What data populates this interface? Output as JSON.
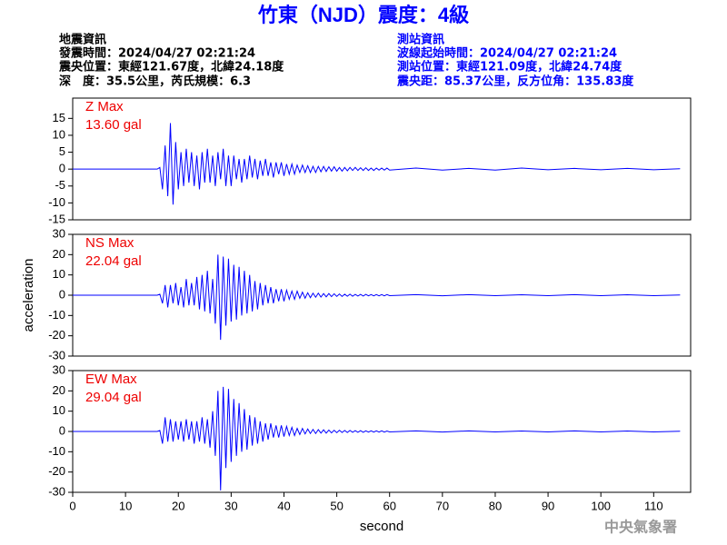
{
  "header": {
    "title": "竹東（NJD）震度：4級",
    "left": [
      "地震資訊",
      "發震時間：2024/04/27 02:21:24",
      "震央位置：東經121.67度，北緯24.18度",
      "深　度：35.5公里，芮氏規模：6.3"
    ],
    "right": [
      "測站資訊",
      "波線起始時間：2024/04/27 02:21:24",
      "測站位置：東經121.09度，北緯24.74度",
      "震央距：85.37公里，反方位角：135.83度"
    ]
  },
  "footer": "中央氣象署",
  "chart_data": [
    {
      "type": "line",
      "annotation": [
        "Z Max",
        "13.60 gal"
      ],
      "color": "#0000ff",
      "xlim": [
        0,
        117
      ],
      "ylim": [
        -15,
        21
      ],
      "yticks": [
        15,
        10,
        5,
        0,
        -5,
        -10,
        -15
      ],
      "x": [
        0,
        16,
        16.5,
        17,
        17.5,
        18,
        18.5,
        19,
        19.5,
        20,
        20.5,
        21,
        21.5,
        22,
        22.5,
        23,
        23.5,
        24,
        24.5,
        25,
        25.5,
        26,
        26.5,
        27,
        27.5,
        28,
        28.5,
        29,
        29.5,
        30,
        30.5,
        31,
        31.5,
        32,
        32.5,
        33,
        33.5,
        34,
        34.5,
        35,
        35.5,
        36,
        36.5,
        37,
        37.5,
        38,
        38.5,
        39,
        39.5,
        40,
        40.5,
        41,
        41.5,
        42,
        42.5,
        43,
        43.5,
        44,
        44.5,
        45,
        45.5,
        46,
        46.5,
        47,
        47.5,
        48,
        48.5,
        49,
        49.5,
        50,
        50.5,
        51,
        51.5,
        52,
        52.5,
        53,
        53.5,
        54,
        54.5,
        55,
        55.5,
        56,
        56.5,
        57,
        57.5,
        58,
        58.5,
        59,
        59.5,
        60,
        65,
        70,
        75,
        80,
        85,
        90,
        95,
        100,
        105,
        110,
        115
      ],
      "values": [
        0,
        0,
        0.5,
        -6,
        7,
        -8,
        13.6,
        -10.5,
        8,
        -6,
        5,
        -5,
        6,
        -4,
        5,
        -5,
        4,
        -6,
        5,
        -4,
        6,
        -4,
        4,
        -5,
        5,
        -3,
        6,
        -5,
        4,
        -5,
        4,
        -3,
        3,
        -4,
        3,
        -3,
        4,
        -2.5,
        3,
        -3,
        2.5,
        -2,
        3,
        -2,
        2,
        -2.5,
        2,
        -1.5,
        2,
        -2,
        1.5,
        -1.5,
        1.5,
        -1.5,
        1.2,
        -1,
        1.2,
        -1,
        1,
        -1,
        0.8,
        -1,
        0.8,
        -0.8,
        0.8,
        -0.7,
        0.7,
        -0.6,
        0.7,
        -0.6,
        0.5,
        -0.6,
        0.5,
        -0.5,
        0.5,
        -0.4,
        0.5,
        -0.4,
        0.4,
        -0.4,
        0.4,
        -0.4,
        0.3,
        -0.4,
        0.3,
        -0.3,
        0.3,
        -0.3,
        0.3,
        -0.3,
        0.3,
        -0.3,
        0.2,
        -0.3,
        0.3,
        -0.2,
        0.2,
        -0.2,
        0.2,
        -0.2,
        0.1
      ]
    },
    {
      "type": "line",
      "annotation": [
        "NS Max",
        "22.04 gal"
      ],
      "ylabel": "acceleration",
      "color": "#0000ff",
      "xlim": [
        0,
        117
      ],
      "ylim": [
        -30,
        30
      ],
      "yticks": [
        30,
        20,
        10,
        0,
        -10,
        -20,
        -30
      ],
      "x": [
        0,
        16,
        16.5,
        17,
        17.5,
        18,
        18.5,
        19,
        19.5,
        20,
        20.5,
        21,
        21.5,
        22,
        22.5,
        23,
        23.5,
        24,
        24.5,
        25,
        25.5,
        26,
        26.5,
        27,
        27.5,
        28,
        28.5,
        29,
        29.5,
        30,
        30.5,
        31,
        31.5,
        32,
        32.5,
        33,
        33.5,
        34,
        34.5,
        35,
        35.5,
        36,
        36.5,
        37,
        37.5,
        38,
        38.5,
        39,
        39.5,
        40,
        40.5,
        41,
        41.5,
        42,
        42.5,
        43,
        43.5,
        44,
        44.5,
        45,
        45.5,
        46,
        46.5,
        47,
        47.5,
        48,
        48.5,
        49,
        49.5,
        50,
        50.5,
        51,
        51.5,
        52,
        52.5,
        53,
        53.5,
        54,
        54.5,
        55,
        55.5,
        56,
        56.5,
        57,
        57.5,
        58,
        58.5,
        59,
        59.5,
        60,
        65,
        70,
        75,
        80,
        85,
        90,
        95,
        100,
        105,
        110,
        115
      ],
      "values": [
        0,
        0,
        0.5,
        -4,
        5,
        -6,
        5,
        -4,
        6,
        -5,
        4,
        -6,
        8,
        -5,
        6,
        -5,
        9,
        -7,
        10,
        -8,
        12,
        -9,
        8,
        -14,
        20,
        -22,
        19,
        -15,
        18,
        -13,
        15,
        -12,
        14,
        -10,
        12,
        -9,
        10,
        -8,
        7,
        -7,
        6,
        -5,
        5,
        -4,
        4,
        -4,
        3,
        -3,
        3,
        -3,
        2.5,
        -2,
        2,
        -2,
        2,
        -1.5,
        1.5,
        -1.5,
        1.2,
        -1.2,
        1,
        -1,
        1,
        -0.9,
        0.8,
        -0.8,
        0.8,
        -0.7,
        0.7,
        -0.6,
        0.6,
        -0.6,
        0.5,
        -0.5,
        0.5,
        -0.5,
        0.4,
        -0.4,
        0.4,
        -0.4,
        0.4,
        -0.3,
        0.3,
        -0.3,
        0.3,
        -0.3,
        0.3,
        -0.3,
        0.3,
        -0.2,
        0.3,
        -0.3,
        0.3,
        -0.2,
        0.2,
        -0.2,
        0.3,
        -0.2,
        0.2,
        -0.2,
        0.1
      ]
    },
    {
      "type": "line",
      "annotation": [
        "EW Max",
        "29.04 gal"
      ],
      "xlabel": "second",
      "color": "#0000ff",
      "xlim": [
        0,
        117
      ],
      "ylim": [
        -30,
        30
      ],
      "yticks": [
        30,
        20,
        10,
        0,
        -10,
        -20,
        -30
      ],
      "xticks": [
        0,
        10,
        20,
        30,
        40,
        50,
        60,
        70,
        80,
        90,
        100,
        110
      ],
      "x": [
        0,
        16,
        16.5,
        17,
        17.5,
        18,
        18.5,
        19,
        19.5,
        20,
        20.5,
        21,
        21.5,
        22,
        22.5,
        23,
        23.5,
        24,
        24.5,
        25,
        25.5,
        26,
        26.5,
        27,
        27.5,
        28,
        28.5,
        29,
        29.5,
        30,
        30.5,
        31,
        31.5,
        32,
        32.5,
        33,
        33.5,
        34,
        34.5,
        35,
        35.5,
        36,
        36.5,
        37,
        37.5,
        38,
        38.5,
        39,
        39.5,
        40,
        40.5,
        41,
        41.5,
        42,
        42.5,
        43,
        43.5,
        44,
        44.5,
        45,
        45.5,
        46,
        46.5,
        47,
        47.5,
        48,
        48.5,
        49,
        49.5,
        50,
        50.5,
        51,
        51.5,
        52,
        52.5,
        53,
        53.5,
        54,
        54.5,
        55,
        55.5,
        56,
        56.5,
        57,
        57.5,
        58,
        58.5,
        59,
        59.5,
        60,
        65,
        70,
        75,
        80,
        85,
        90,
        95,
        100,
        105,
        110,
        115
      ],
      "values": [
        0,
        0,
        0.5,
        -6,
        7,
        -5,
        6,
        -5,
        5,
        -4,
        5,
        -5,
        6,
        -4,
        5,
        -6,
        5,
        -5,
        7,
        -6,
        6,
        -8,
        10,
        -12,
        20,
        -29.04,
        22,
        -18,
        21,
        -15,
        16,
        -12,
        14,
        -10,
        11,
        -9,
        8,
        -7,
        7,
        -6,
        5,
        -5,
        4,
        -4,
        4,
        -3,
        3,
        -3,
        3,
        -2.5,
        2.5,
        -2,
        2,
        -2,
        1.5,
        -1.5,
        1.5,
        -1.2,
        1.2,
        -1,
        1,
        -1,
        0.9,
        -0.8,
        0.8,
        -0.8,
        0.7,
        -0.7,
        0.6,
        -0.6,
        0.6,
        -0.5,
        0.5,
        -0.5,
        0.5,
        -0.4,
        0.4,
        -0.4,
        0.4,
        -0.4,
        0.3,
        -0.3,
        0.3,
        -0.3,
        0.3,
        -0.3,
        0.3,
        -0.3,
        0.2,
        -0.2,
        0.3,
        -0.3,
        0.3,
        -0.2,
        0.2,
        -0.2,
        0.3,
        -0.2,
        0.2,
        -0.2,
        0.1
      ]
    }
  ]
}
